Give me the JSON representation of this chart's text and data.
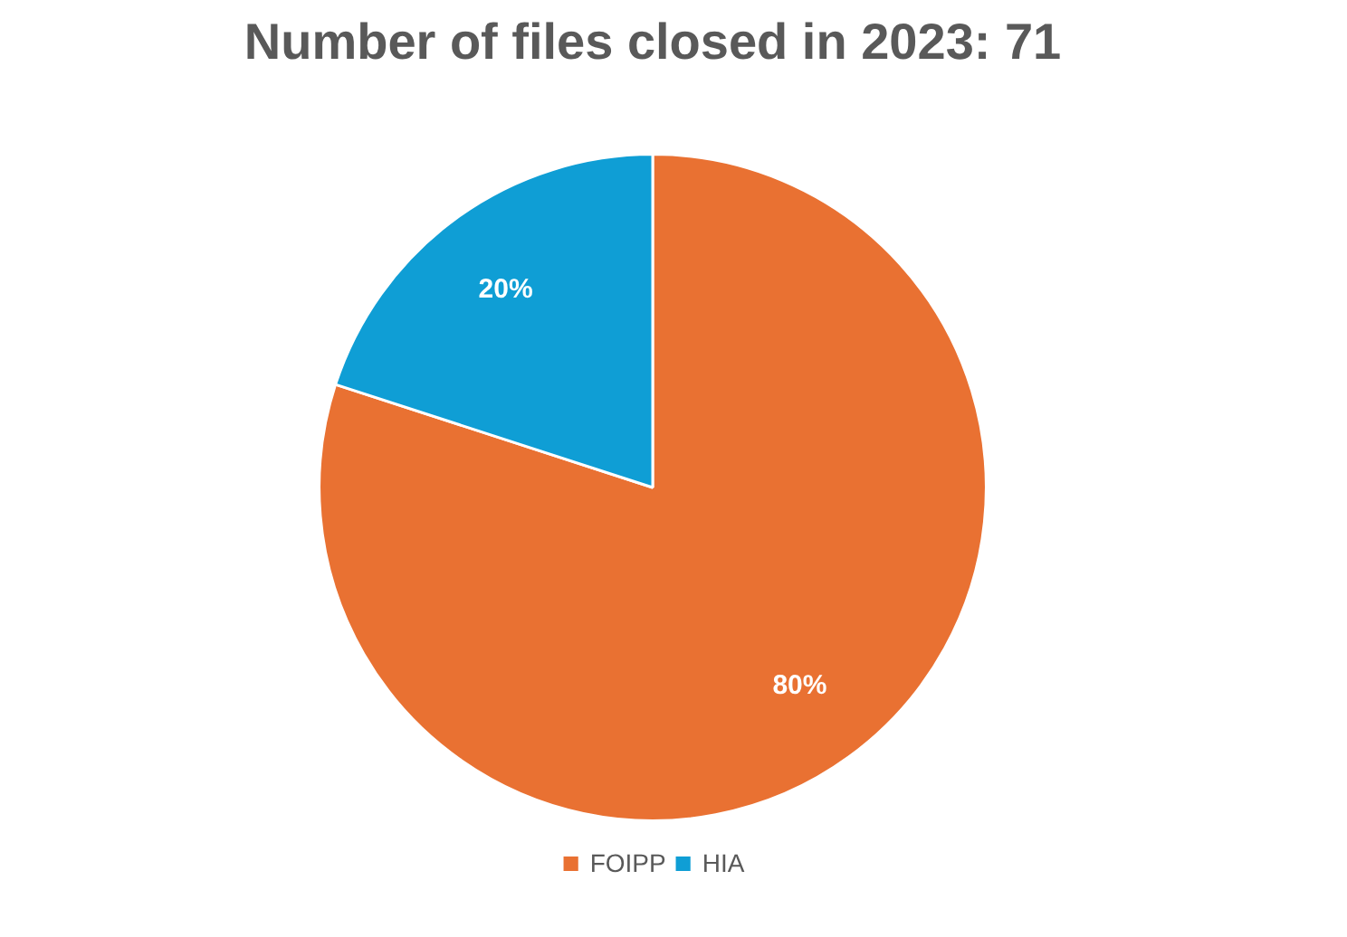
{
  "chart_data": {
    "type": "pie",
    "title": "Number of files closed in 2023: 71",
    "categories": [
      "FOIPP",
      "HIA"
    ],
    "values": [
      80,
      20
    ],
    "colors": [
      "#e97132",
      "#0f9ed5"
    ],
    "value_labels": [
      "80%",
      "20%"
    ],
    "legend": "bottom"
  }
}
